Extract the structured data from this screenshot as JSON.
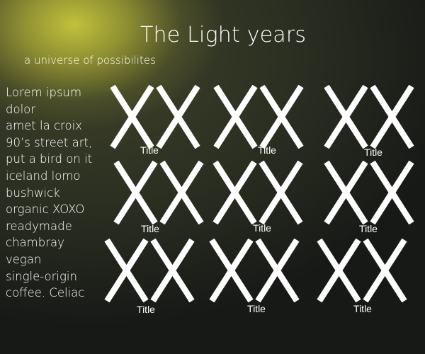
{
  "page": {
    "title": "The Light years",
    "subtitle": "a universe of possibilites",
    "intro_text": "Lorem ipsum\ndolor\namet la croix\n90’s street art,\nput a bird on it\niceland lomo\nbushwick\norganic XOXO\nreadymade\nchambray\nvegan\nsingle-origin\ncoffee. Celiac"
  },
  "grid": {
    "items": [
      {
        "label": "Title",
        "placeholder_icon": "placeholder-xx-icon"
      },
      {
        "label": "Title",
        "placeholder_icon": "placeholder-xx-icon"
      },
      {
        "label": "Title",
        "placeholder_icon": "placeholder-xx-icon"
      },
      {
        "label": "Title",
        "placeholder_icon": "placeholder-xx-icon"
      },
      {
        "label": "Title",
        "placeholder_icon": "placeholder-xx-icon"
      },
      {
        "label": "Title",
        "placeholder_icon": "placeholder-xx-icon"
      },
      {
        "label": "Title",
        "placeholder_icon": "placeholder-xx-icon"
      },
      {
        "label": "Title",
        "placeholder_icon": "placeholder-xx-icon"
      },
      {
        "label": "Title",
        "placeholder_icon": "placeholder-xx-icon"
      }
    ]
  },
  "colors": {
    "text": "#ffffff",
    "glow": "#c2c13c",
    "background": "#171917"
  }
}
